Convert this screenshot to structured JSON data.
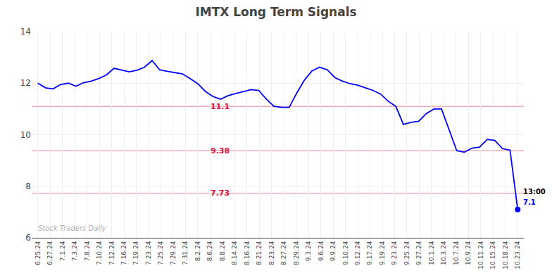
{
  "chart_data": {
    "type": "line",
    "title": "IMTX Long Term Signals",
    "color": "blue",
    "marker": "last",
    "grid": true,
    "x": [
      0,
      0.6190476190476191,
      1.2380952380952381,
      1.8571428571428572,
      2.4761904761904763,
      3.0952380952380953,
      3.7142857142857144,
      4.333333333333333,
      4.9523809523809526,
      5.571428571428571,
      6.190476190476191,
      6.809523809523809,
      7.428571428571429,
      8.047619047619047,
      8.666666666666666,
      9.285714285714286,
      9.904761904761905,
      10.523809523809524,
      11.142857142857142,
      11.761904761904763,
      12.380952380952381,
      13,
      13.619047619047619,
      14.238095238095237,
      14.857142857142858,
      15.476190476190476,
      16.095238095238095,
      16.714285714285715,
      17.333333333333332,
      17.952380952380953,
      18.571428571428573,
      19.19047619047619,
      19.80952380952381,
      20.428571428571427,
      21.047619047619047,
      21.666666666666668,
      22.285714285714285,
      22.904761904761905,
      23.523809523809526,
      24.142857142857142,
      24.761904761904763,
      25.38095238095238,
      26,
      26.61904761904762,
      27.238095238095237,
      27.857142857142858,
      28.476190476190474,
      29.095238095238095,
      29.714285714285715,
      30.333333333333332,
      30.952380952380953,
      31.571428571428573,
      32.19047619047619,
      32.80952380952381,
      33.42857142857143,
      34.04761904761905,
      34.666666666666664,
      35.285714285714285,
      35.904761904761905,
      36.523809523809526,
      37.142857142857146,
      37.76190476190476,
      38.38095238095238,
      39
    ],
    "values": [
      12.0,
      11.82,
      11.78,
      11.95,
      12.0,
      11.88,
      12.02,
      12.08,
      12.18,
      12.32,
      12.58,
      12.52,
      12.44,
      12.5,
      12.62,
      12.88,
      12.52,
      12.46,
      12.4,
      12.36,
      12.18,
      11.98,
      11.68,
      11.48,
      11.38,
      11.52,
      11.6,
      11.68,
      11.75,
      11.72,
      11.38,
      11.1,
      11.06,
      11.06,
      11.62,
      12.12,
      12.48,
      12.62,
      12.52,
      12.22,
      12.08,
      11.98,
      11.92,
      11.82,
      11.72,
      11.58,
      11.3,
      11.1,
      10.4,
      10.48,
      10.52,
      10.82,
      11.0,
      11.0,
      10.18,
      9.38,
      9.32,
      9.48,
      9.52,
      9.82,
      9.78,
      9.46,
      9.4,
      7.1
    ],
    "xlim": [
      -0.5,
      39.5
    ],
    "xticks": [
      {
        "value": 0,
        "label": "6.25.24"
      },
      {
        "value": 1,
        "label": "6.27.24"
      },
      {
        "value": 2,
        "label": "7.1.24"
      },
      {
        "value": 3,
        "label": "7.3.24"
      },
      {
        "value": 4,
        "label": "7.8.24"
      },
      {
        "value": 5,
        "label": "7.10.24"
      },
      {
        "value": 6,
        "label": "7.12.24"
      },
      {
        "value": 7,
        "label": "7.16.24"
      },
      {
        "value": 8,
        "label": "7.19.24"
      },
      {
        "value": 9,
        "label": "7.23.24"
      },
      {
        "value": 10,
        "label": "7.25.24"
      },
      {
        "value": 11,
        "label": "7.29.24"
      },
      {
        "value": 12,
        "label": "7.31.24"
      },
      {
        "value": 13,
        "label": "8.2.24"
      },
      {
        "value": 14,
        "label": "8.6.24"
      },
      {
        "value": 15,
        "label": "8.8.24"
      },
      {
        "value": 16,
        "label": "8.14.24"
      },
      {
        "value": 17,
        "label": "8.16.24"
      },
      {
        "value": 18,
        "label": "8.21.24"
      },
      {
        "value": 19,
        "label": "8.23.24"
      },
      {
        "value": 20,
        "label": "8.27.24"
      },
      {
        "value": 21,
        "label": "8.29.24"
      },
      {
        "value": 22,
        "label": "9.3.24"
      },
      {
        "value": 23,
        "label": "9.6.24"
      },
      {
        "value": 24,
        "label": "9.9.24"
      },
      {
        "value": 25,
        "label": "9.10.24"
      },
      {
        "value": 26,
        "label": "9.12.24"
      },
      {
        "value": 27,
        "label": "9.17.24"
      },
      {
        "value": 28,
        "label": "9.19.24"
      },
      {
        "value": 29,
        "label": "9.23.24"
      },
      {
        "value": 30,
        "label": "9.25.24"
      },
      {
        "value": 31,
        "label": "9.27.24"
      },
      {
        "value": 32,
        "label": "10.1.24"
      },
      {
        "value": 33,
        "label": "10.3.24"
      },
      {
        "value": 34,
        "label": "10.7.24"
      },
      {
        "value": 35,
        "label": "10.9.24"
      },
      {
        "value": 36,
        "label": "10.11.24"
      },
      {
        "value": 37,
        "label": "10.15.24"
      },
      {
        "value": 38,
        "label": "10.18.24"
      },
      {
        "value": 39,
        "label": "10.23.24"
      }
    ],
    "ylim": [
      6,
      14
    ],
    "yticks": [
      6,
      8,
      10,
      12,
      14
    ],
    "hlines": [
      {
        "y": 11.1,
        "label": "11.1",
        "color": "crimson"
      },
      {
        "y": 9.38,
        "label": "9.38",
        "color": "crimson"
      },
      {
        "y": 7.73,
        "label": "7.73",
        "color": "crimson"
      }
    ],
    "annotations": [
      "13:00",
      "7.1"
    ],
    "watermark": "Stock Traders Daily"
  }
}
